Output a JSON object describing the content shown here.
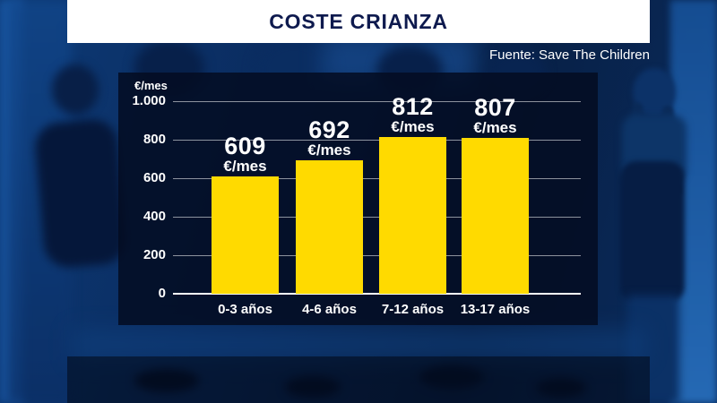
{
  "header": {
    "title": "COSTE CRIANZA",
    "source": "Fuente: Save The Children"
  },
  "colors": {
    "bar": "#FFDA00",
    "banner_bg": "#FFFFFF",
    "title_text": "#0E1A4E",
    "panel_bg": "rgba(4,12,33,0.85)",
    "text": "#FFFFFF",
    "background_base": "#0A2C5E"
  },
  "chart_data": {
    "type": "bar",
    "title": "COSTE CRIANZA",
    "source": "Fuente: Save The Children",
    "ylabel": "€/mes",
    "unit_label": "€/mes",
    "categories": [
      "0-3 años",
      "4-6 años",
      "7-12 años",
      "13-17 años"
    ],
    "values": [
      609,
      692,
      812,
      807
    ],
    "ylim": [
      0,
      1000
    ],
    "yticks": [
      {
        "value": 0,
        "label": "0"
      },
      {
        "value": 200,
        "label": "200"
      },
      {
        "value": 400,
        "label": "400"
      },
      {
        "value": 600,
        "label": "600"
      },
      {
        "value": 800,
        "label": "800"
      },
      {
        "value": 1000,
        "label": "1.000"
      }
    ],
    "grid": true,
    "legend": "none",
    "bar_color": "#FFDA00"
  }
}
